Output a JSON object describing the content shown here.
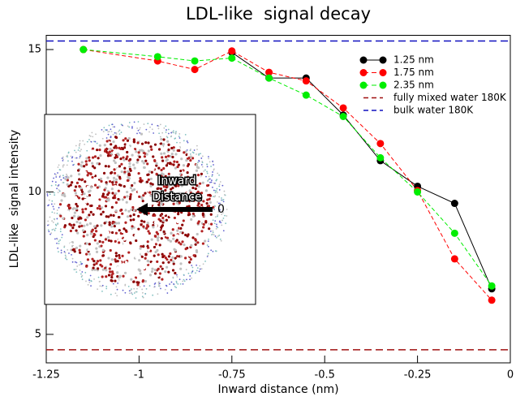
{
  "chart_data": {
    "type": "line",
    "title": "LDL-like  signal decay",
    "x_label": "Inward distance (nm)",
    "y_label": "LDL-like  signal intensity",
    "x": [
      -1.15,
      -0.95,
      -0.85,
      -0.75,
      -0.65,
      -0.55,
      -0.45,
      -0.35,
      -0.25,
      -0.15,
      -0.05
    ],
    "series": [
      {
        "name": "1.25 nm",
        "color": "#000000",
        "dashed": false,
        "values": [
          null,
          null,
          null,
          14.9,
          14.0,
          14.0,
          12.7,
          11.1,
          10.2,
          9.6,
          6.6
        ]
      },
      {
        "name": "1.75 nm",
        "color": "#ff0000",
        "dashed": true,
        "values": [
          15.0,
          14.6,
          14.3,
          14.95,
          14.2,
          13.9,
          12.95,
          11.7,
          10.05,
          7.65,
          6.2
        ]
      },
      {
        "name": "2.35 nm",
        "color": "#00ee00",
        "dashed": true,
        "values": [
          15.0,
          14.75,
          14.6,
          14.7,
          14.0,
          13.4,
          12.65,
          11.2,
          10.0,
          8.55,
          6.7
        ]
      }
    ],
    "reference_lines": [
      {
        "name": "fully mixed water 180K",
        "color": "#a01010",
        "value": 4.46
      },
      {
        "name": "bulk water 180K",
        "color": "#1010c0",
        "value": 15.3
      }
    ],
    "xlim": [
      -1.25,
      0
    ],
    "ylim": [
      4,
      15.5
    ],
    "xticks": [
      -1.25,
      -1,
      -0.75,
      -0.5,
      -0.25,
      0
    ],
    "yticks": [
      5,
      10,
      15
    ],
    "legend": "top-right",
    "inset": {
      "label": [
        "Inward",
        "Distance"
      ],
      "zero": "0"
    }
  }
}
